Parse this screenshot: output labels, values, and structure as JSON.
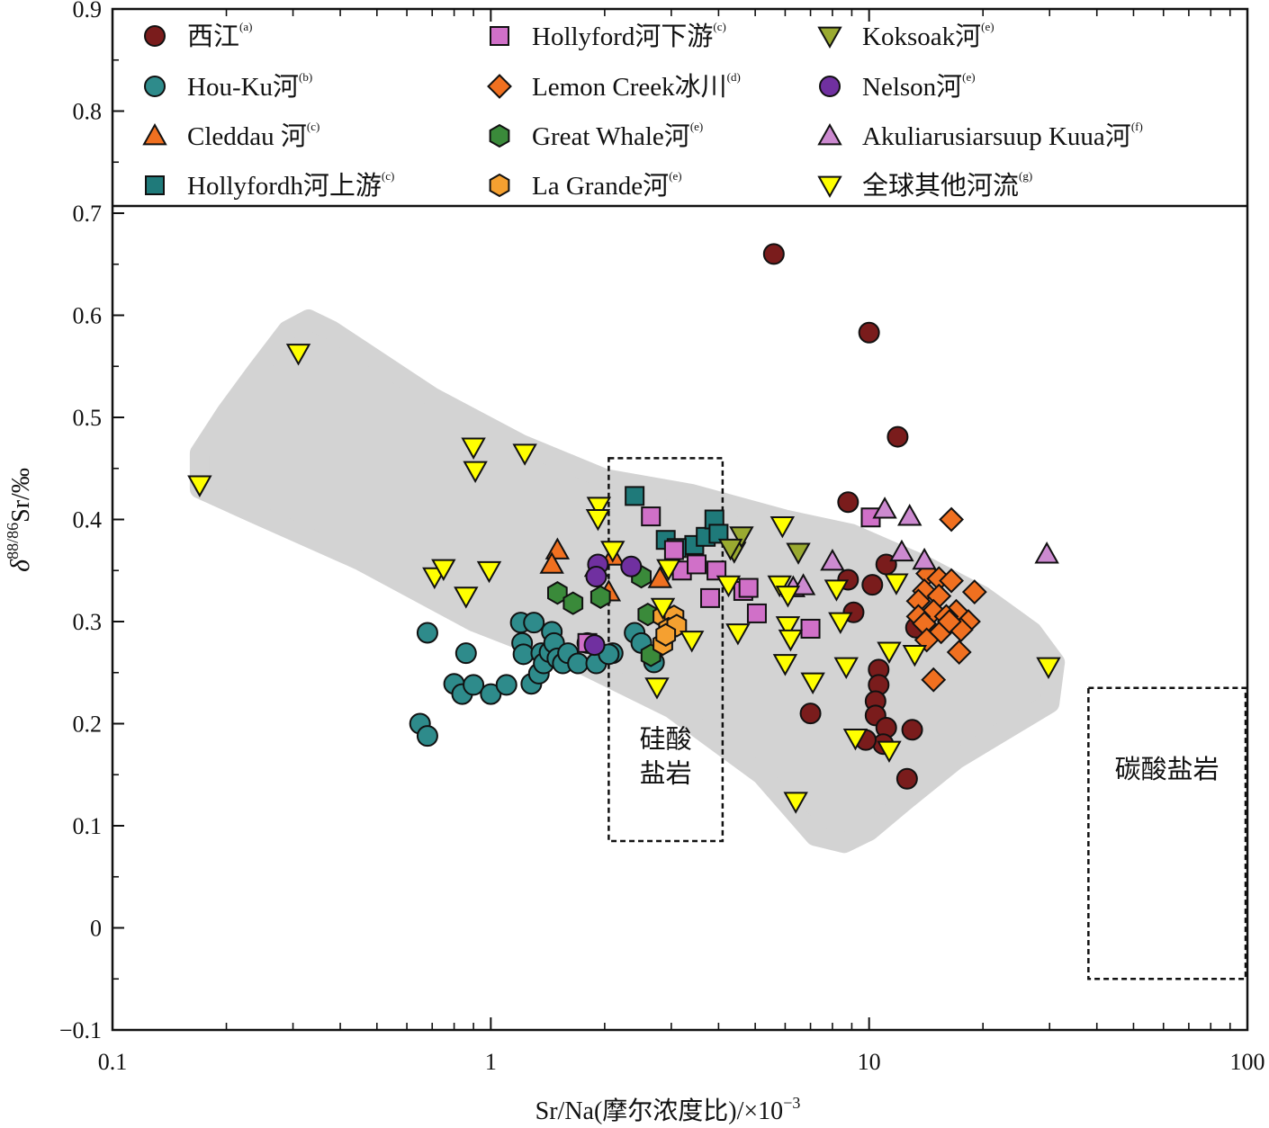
{
  "chart_data": {
    "type": "scatter",
    "x_scale": "log",
    "xlim": [
      0.1,
      100
    ],
    "ylim": [
      -0.1,
      0.9
    ],
    "x_ticks": [
      "0.1",
      "1",
      "10",
      "100"
    ],
    "y_ticks": [
      "−0.1",
      "0",
      "0.1",
      "0.2",
      "0.3",
      "0.4",
      "0.5",
      "0.6",
      "0.7",
      "0.8",
      "0.9"
    ],
    "xlabel": "Sr/Na(摩尔浓度比)/×10",
    "xlabel_exp": "−3",
    "ylabel_delta": "δ",
    "ylabel_iso": "88/86",
    "ylabel_rest": "Sr/‰",
    "grid": false,
    "legend_position": "top (inside)",
    "regions": [
      {
        "name": "silicate",
        "label_lines": [
          "硅酸",
          "盐岩"
        ],
        "style": "dashed box",
        "x": [
          2.05,
          4.1
        ],
        "y": [
          0.085,
          0.46
        ]
      },
      {
        "name": "carbonate",
        "label_lines": [
          "碳酸盐岩"
        ],
        "style": "dashed box",
        "x": [
          38,
          100
        ],
        "y": [
          -0.05,
          0.235
        ]
      },
      {
        "name": "global-range",
        "style": "gray shaded field"
      }
    ],
    "series": [
      {
        "name": "西江",
        "ref": "(a)",
        "marker": "circle",
        "color": "#7a1c1c",
        "points": [
          [
            5.6,
            0.66
          ],
          [
            10,
            0.583
          ],
          [
            11.9,
            0.481
          ],
          [
            8.8,
            0.417
          ],
          [
            8.8,
            0.341
          ],
          [
            10.2,
            0.336
          ],
          [
            11.1,
            0.356
          ],
          [
            9.1,
            0.309
          ],
          [
            10.6,
            0.253
          ],
          [
            10.6,
            0.238
          ],
          [
            10.4,
            0.222
          ],
          [
            10.4,
            0.208
          ],
          [
            11.1,
            0.196
          ],
          [
            10.9,
            0.18
          ],
          [
            9.8,
            0.184
          ],
          [
            13,
            0.194
          ],
          [
            7,
            0.21
          ],
          [
            12.6,
            0.146
          ],
          [
            13.3,
            0.294
          ]
        ]
      },
      {
        "name": "Hou-Ku河",
        "ref": "(b)",
        "marker": "circle",
        "color": "#2e8b8b",
        "points": [
          [
            0.65,
            0.2
          ],
          [
            0.68,
            0.188
          ],
          [
            0.68,
            0.289
          ],
          [
            0.8,
            0.239
          ],
          [
            0.84,
            0.229
          ],
          [
            0.86,
            0.269
          ],
          [
            0.9,
            0.238
          ],
          [
            1.0,
            0.229
          ],
          [
            1.1,
            0.238
          ],
          [
            1.2,
            0.299
          ],
          [
            1.21,
            0.279
          ],
          [
            1.22,
            0.268
          ],
          [
            1.28,
            0.239
          ],
          [
            1.3,
            0.299
          ],
          [
            1.34,
            0.249
          ],
          [
            1.36,
            0.269
          ],
          [
            1.38,
            0.259
          ],
          [
            1.43,
            0.27
          ],
          [
            1.45,
            0.29
          ],
          [
            1.47,
            0.279
          ],
          [
            1.5,
            0.264
          ],
          [
            1.55,
            0.259
          ],
          [
            1.6,
            0.269
          ],
          [
            1.7,
            0.259
          ],
          [
            1.8,
            0.279
          ],
          [
            1.9,
            0.259
          ],
          [
            2.1,
            0.269
          ],
          [
            2.05,
            0.268
          ],
          [
            2.4,
            0.289
          ],
          [
            2.5,
            0.279
          ],
          [
            2.7,
            0.26
          ]
        ]
      },
      {
        "name": "Cleddau 河",
        "ref": "(c)",
        "marker": "triangle-up",
        "color": "#f07020",
        "points": [
          [
            1.5,
            0.37
          ],
          [
            1.45,
            0.356
          ],
          [
            2.1,
            0.364
          ],
          [
            2.05,
            0.329
          ],
          [
            2.8,
            0.342
          ],
          [
            3.0,
            0.36
          ],
          [
            1.9,
            0.353
          ]
        ]
      },
      {
        "name": "Hollyfordh河上游",
        "ref": "(c)",
        "marker": "square",
        "color": "#1f7a7a",
        "points": [
          [
            2.4,
            0.423
          ],
          [
            2.9,
            0.38
          ],
          [
            3.45,
            0.375
          ],
          [
            3.7,
            0.383
          ],
          [
            3.9,
            0.4
          ],
          [
            4.0,
            0.386
          ],
          [
            3.1,
            0.372
          ]
        ]
      },
      {
        "name": "Hollyford河下游",
        "ref": "(c)",
        "marker": "square",
        "color": "#d070c8",
        "points": [
          [
            2.65,
            0.403
          ],
          [
            3.05,
            0.37
          ],
          [
            3.2,
            0.35
          ],
          [
            3.5,
            0.356
          ],
          [
            3.95,
            0.35
          ],
          [
            3.8,
            0.323
          ],
          [
            4.65,
            0.33
          ],
          [
            4.8,
            0.333
          ],
          [
            5.05,
            0.308
          ],
          [
            7,
            0.293
          ],
          [
            10.1,
            0.402
          ],
          [
            1.8,
            0.279
          ]
        ]
      },
      {
        "name": "Lemon Creek冰川",
        "ref": "(d)",
        "marker": "diamond",
        "color": "#f07020",
        "points": [
          [
            16.5,
            0.4
          ],
          [
            14.3,
            0.347
          ],
          [
            15.3,
            0.342
          ],
          [
            16.5,
            0.34
          ],
          [
            14,
            0.33
          ],
          [
            15.3,
            0.325
          ],
          [
            17,
            0.31
          ],
          [
            13.5,
            0.32
          ],
          [
            14.8,
            0.31
          ],
          [
            16,
            0.305
          ],
          [
            18.3,
            0.3
          ],
          [
            19,
            0.329
          ],
          [
            13.5,
            0.305
          ],
          [
            14,
            0.298
          ],
          [
            15.5,
            0.29
          ],
          [
            17.5,
            0.292
          ],
          [
            16.3,
            0.3
          ],
          [
            14.2,
            0.282
          ],
          [
            17.3,
            0.27
          ],
          [
            14.8,
            0.243
          ]
        ]
      },
      {
        "name": "Great Whale河",
        "ref": "(e)",
        "marker": "hexagon",
        "color": "#3a8a3a",
        "points": [
          [
            1.5,
            0.328
          ],
          [
            1.65,
            0.318
          ],
          [
            1.95,
            0.324
          ],
          [
            2.5,
            0.344
          ],
          [
            2.6,
            0.307
          ],
          [
            2.65,
            0.267
          ]
        ]
      },
      {
        "name": "La Grande河",
        "ref": "(e)",
        "marker": "hexagon",
        "color": "#f5a030",
        "points": [
          [
            2.85,
            0.305
          ],
          [
            3.05,
            0.305
          ],
          [
            2.95,
            0.293
          ],
          [
            2.85,
            0.278
          ],
          [
            3.1,
            0.296
          ],
          [
            2.9,
            0.287
          ]
        ]
      },
      {
        "name": "Koksoak河",
        "ref": "(e)",
        "marker": "triangle-down",
        "color": "#9aaa30",
        "points": [
          [
            4.4,
            0.369
          ],
          [
            4.6,
            0.384
          ],
          [
            6.5,
            0.368
          ],
          [
            4.3,
            0.372
          ]
        ]
      },
      {
        "name": "Nelson河",
        "ref": "(e)",
        "marker": "circle",
        "color": "#7030a0",
        "points": [
          [
            1.92,
            0.356
          ],
          [
            1.9,
            0.344
          ],
          [
            2.35,
            0.354
          ],
          [
            1.88,
            0.277
          ]
        ]
      },
      {
        "name": "Akuliarusiarsuup Kuua河",
        "ref": "(f)",
        "marker": "triangle-up",
        "color": "#cc8ad0",
        "points": [
          [
            11,
            0.41
          ],
          [
            12.8,
            0.403
          ],
          [
            8,
            0.359
          ],
          [
            12.2,
            0.368
          ],
          [
            14,
            0.36
          ],
          [
            29.5,
            0.366
          ],
          [
            6.3,
            0.333
          ],
          [
            6.7,
            0.335
          ]
        ]
      },
      {
        "name": "全球其他河流",
        "ref": "(g)",
        "marker": "triangle-down",
        "color": "#ffff00",
        "points": [
          [
            0.17,
            0.434
          ],
          [
            0.31,
            0.563
          ],
          [
            0.71,
            0.344
          ],
          [
            0.75,
            0.352
          ],
          [
            0.86,
            0.325
          ],
          [
            0.9,
            0.471
          ],
          [
            0.91,
            0.448
          ],
          [
            0.99,
            0.35
          ],
          [
            1.23,
            0.465
          ],
          [
            1.93,
            0.413
          ],
          [
            1.92,
            0.401
          ],
          [
            2.1,
            0.37
          ],
          [
            2.85,
            0.314
          ],
          [
            2.75,
            0.236
          ],
          [
            3.4,
            0.282
          ],
          [
            4.5,
            0.289
          ],
          [
            5.8,
            0.336
          ],
          [
            5.9,
            0.394
          ],
          [
            6.1,
            0.326
          ],
          [
            6.1,
            0.296
          ],
          [
            6.2,
            0.283
          ],
          [
            6.0,
            0.259
          ],
          [
            6.4,
            0.124
          ],
          [
            7.1,
            0.241
          ],
          [
            8.2,
            0.332
          ],
          [
            8.4,
            0.3
          ],
          [
            8.7,
            0.256
          ],
          [
            9.2,
            0.186
          ],
          [
            11.3,
            0.271
          ],
          [
            11.8,
            0.338
          ],
          [
            11.3,
            0.174
          ],
          [
            13.2,
            0.268
          ],
          [
            29.8,
            0.256
          ],
          [
            2.95,
            0.352
          ],
          [
            4.25,
            0.336
          ]
        ]
      }
    ]
  }
}
